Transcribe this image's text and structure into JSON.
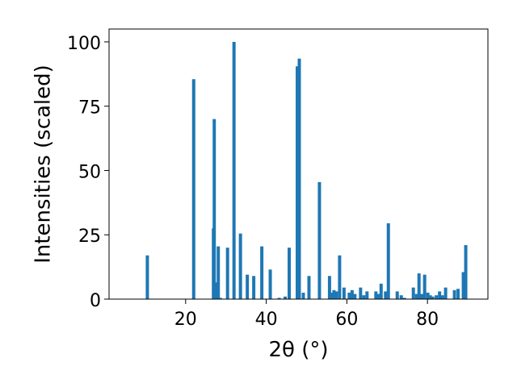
{
  "chart_data": {
    "type": "bar",
    "xlabel": "2θ (°)",
    "ylabel": "Intensities (scaled)",
    "xlim": [
      1,
      95
    ],
    "ylim": [
      0,
      105
    ],
    "xticks": [
      20,
      40,
      60,
      80
    ],
    "yticks": [
      0,
      25,
      50,
      75,
      100
    ],
    "grid": false,
    "bar_color": "#1f77b4",
    "bar_width_units": 0.8,
    "x": [
      10.5,
      22.0,
      26.9,
      27.1,
      27.5,
      28.1,
      28.6,
      30.4,
      32.0,
      33.6,
      35.3,
      36.9,
      38.9,
      41.0,
      43.2,
      44.7,
      45.7,
      47.7,
      48.2,
      49.2,
      50.6,
      53.2,
      55.7,
      56.2,
      56.8,
      57.4,
      58.2,
      59.3,
      60.6,
      61.3,
      62.0,
      63.4,
      64.2,
      65.0,
      67.2,
      67.9,
      68.5,
      69.6,
      70.3,
      72.5,
      73.5,
      74.3,
      76.5,
      77.3,
      77.9,
      78.6,
      79.3,
      80.1,
      80.7,
      81.3,
      82.2,
      83.0,
      83.7,
      84.5,
      86.7,
      87.6,
      88.9,
      89.5
    ],
    "values": [
      17,
      85.5,
      27.5,
      70,
      6.5,
      20.5,
      0.5,
      20,
      100,
      25.5,
      9.5,
      9,
      20.5,
      11.5,
      0.5,
      1,
      20,
      90.5,
      93.5,
      2.5,
      9,
      45.5,
      9,
      2.5,
      3.5,
      3,
      17,
      4.5,
      2.5,
      3.5,
      2,
      4.5,
      1.5,
      3,
      3,
      2,
      6,
      3,
      29.5,
      3,
      1.5,
      0.5,
      4.5,
      2,
      10,
      2,
      9.5,
      2.5,
      1.5,
      1,
      1.5,
      3,
      1.5,
      4.5,
      3.5,
      4,
      10.5,
      21
    ]
  }
}
